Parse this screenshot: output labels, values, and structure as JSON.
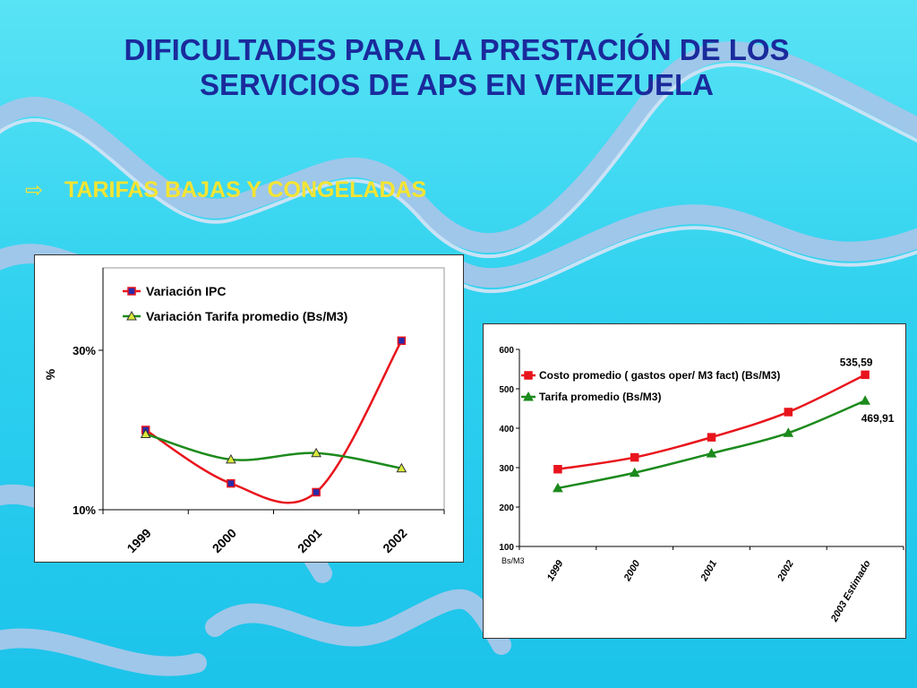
{
  "title_line1": "DIFICULTADES PARA LA PRESTACIÓN DE LOS",
  "title_line2": "SERVICIOS DE APS EN VENEZUELA",
  "bullet": {
    "icon": "hollow-arrow-bullet",
    "text": "TARIFAS BAJAS Y CONGELADAS"
  },
  "colors": {
    "title": "#1a2a9c",
    "bullet_text": "#f4e532",
    "ipc": "#e8141c",
    "tarifa": "#1c8a1c",
    "marker_blue": "#2a2aa8",
    "marker_yellow": "#d8ea3a"
  },
  "chart_data": [
    {
      "type": "line",
      "ylabel": "%",
      "categories": [
        "1999",
        "2000",
        "2001",
        "2002"
      ],
      "y_ticks": [
        "30%",
        "10%"
      ],
      "ylim": [
        10,
        30
      ],
      "legend_position": "top-left",
      "grid": false,
      "series": [
        {
          "name": "Variación IPC",
          "values": [
            20,
            13.3,
            12.2,
            31.2
          ]
        },
        {
          "name": "Variación Tarifa promedio (Bs/M3)",
          "values": [
            19.5,
            16.3,
            17.1,
            15.2
          ]
        }
      ]
    },
    {
      "type": "line",
      "ylabel": "Bs/M3",
      "categories": [
        "1999",
        "2000",
        "2001",
        "2002",
        "2003 Estimado"
      ],
      "y_ticks": [
        "600",
        "500",
        "400",
        "300",
        "200",
        "100"
      ],
      "ylim": [
        100,
        600
      ],
      "legend_position": "top-left",
      "grid": false,
      "series": [
        {
          "name": "Costo promedio  ( gastos oper/ M3 fact)   (Bs/M3)",
          "values": [
            296,
            326,
            377,
            441,
            535.59
          ]
        },
        {
          "name": "Tarifa promedio (Bs/M3)",
          "values": [
            248,
            287,
            336,
            388,
            469.91
          ]
        }
      ],
      "data_labels": [
        "535,59",
        "469,91"
      ]
    }
  ]
}
